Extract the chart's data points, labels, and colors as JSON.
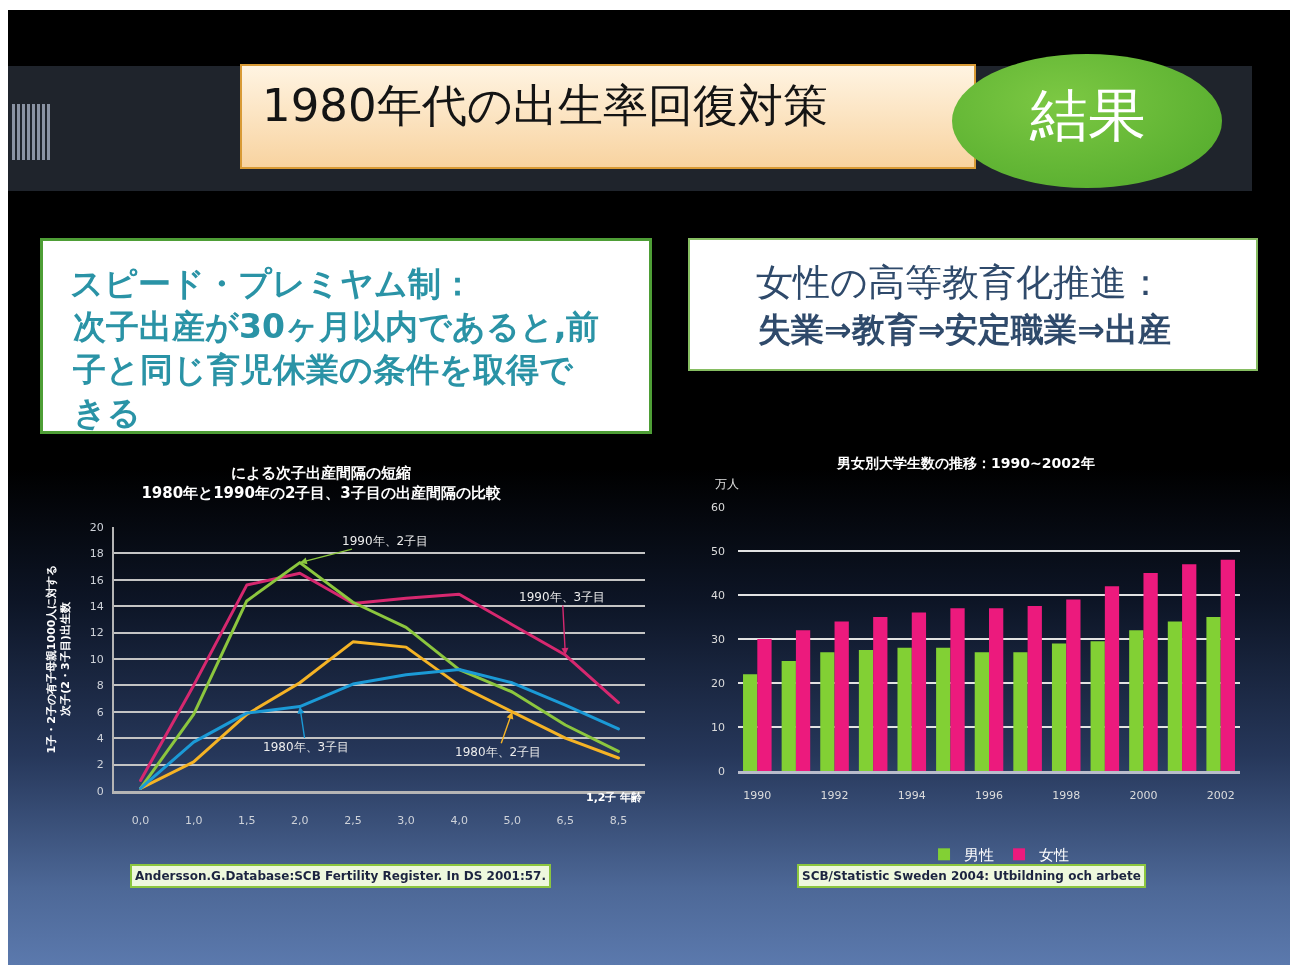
{
  "chart_data": [
    {
      "type": "other",
      "title": "1980年代の出生率回復対策",
      "annotations": [
        "結果"
      ]
    },
    {
      "type": "other",
      "title": "スピード・プレミヤム制：",
      "subtitle": "次子出産が30ヶ月以内であると,前子と同じ育児休業の条件を取得できる"
    },
    {
      "type": "line",
      "title": "による次子出産間隔の短縮\n1980年と1990年の2子目、3子目の出産間隔の比較",
      "xlabel": "1,2子 年齢",
      "ylabel": "1子・2子の有子母親1000人に対する次子(2・3子目)出生数",
      "categories": [
        "0,0",
        "1,0",
        "1,5",
        "2,0",
        "2,5",
        "3,0",
        "4,0",
        "5,0",
        "6,5",
        "8,5"
      ],
      "series": [
        {
          "name": "1990年、3子目",
          "color": "#d6286f",
          "values": [
            0.8,
            8.0,
            15.6,
            16.5,
            14.2,
            14.6,
            14.9,
            12.6,
            10.3,
            6.7
          ]
        },
        {
          "name": "1990年、2子目",
          "color": "#8cc63e",
          "values": [
            0.2,
            5.8,
            14.4,
            17.3,
            14.3,
            12.4,
            9.2,
            7.5,
            5.0,
            3.0
          ]
        },
        {
          "name": "1980年、2子目",
          "color": "#f5b325",
          "values": [
            0.2,
            2.2,
            5.8,
            8.2,
            11.3,
            10.9,
            8.0,
            6.0,
            4.0,
            2.5
          ]
        },
        {
          "name": "1980年、3子目",
          "color": "#1b9ad6",
          "values": [
            0.2,
            3.7,
            5.9,
            6.4,
            8.1,
            8.8,
            9.2,
            8.2,
            6.5,
            4.7
          ]
        }
      ],
      "ylim": [
        0,
        20
      ],
      "yticks": [
        0,
        2,
        4,
        6,
        8,
        10,
        12,
        14,
        16,
        18,
        20
      ],
      "grid": "y",
      "annotations": [
        "Andersson.G.Database:SCB Fertility Register. In DS 2001:57."
      ]
    },
    {
      "type": "other",
      "title": "女性の高等教育化推進：",
      "subtitle": "失業⇒教育⇒安定職業⇒出産"
    },
    {
      "type": "bar",
      "title": "男女別大学生数の推移：1990~2002年",
      "ylabel": "万人",
      "categories": [
        "1990",
        null,
        "1992",
        null,
        "1994",
        null,
        "1996",
        null,
        "1998",
        null,
        "2000",
        null,
        "2002"
      ],
      "series": [
        {
          "name": "男性",
          "color": "#82d034",
          "values": [
            22,
            25,
            27,
            27.5,
            28,
            28,
            27,
            27,
            29,
            29.5,
            32,
            34,
            35
          ]
        },
        {
          "name": "女性",
          "color": "#ec1a7d",
          "values": [
            30,
            32,
            34,
            35,
            36,
            37,
            37,
            37.5,
            39,
            42,
            45,
            47,
            48
          ]
        }
      ],
      "ylim": [
        0,
        60
      ],
      "yticks": [
        0,
        10,
        20,
        30,
        40,
        50,
        60
      ],
      "grid": "y",
      "legend": "bottom",
      "annotations": [
        "SCB/Statistic Sweden 2004: Utbildning och arbete"
      ]
    }
  ]
}
